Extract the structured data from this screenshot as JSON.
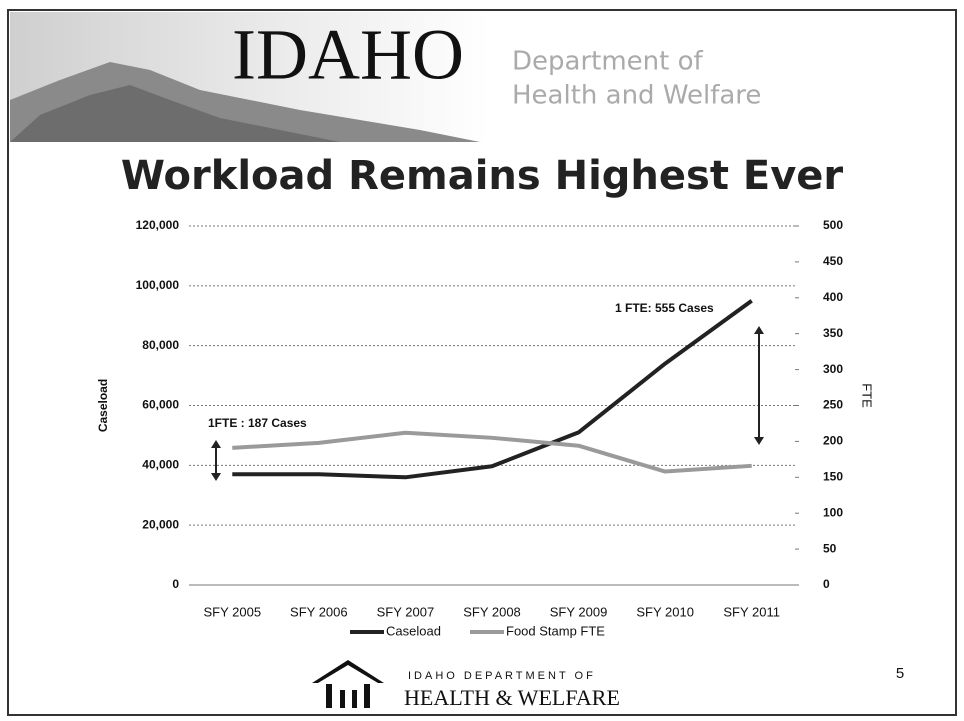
{
  "header": {
    "logo": "IDAHO",
    "department_line1": "Department of",
    "department_line2": "Health and Welfare"
  },
  "chart_data": {
    "type": "line",
    "title": "Workload Remains Highest Ever",
    "categories": [
      "SFY 2005",
      "SFY 2006",
      "SFY 2007",
      "SFY 2008",
      "SFY 2009",
      "SFY 2010",
      "SFY 2011"
    ],
    "series": [
      {
        "name": "Caseload",
        "color": "#222222",
        "values": [
          37000,
          37000,
          36000,
          39700,
          51000,
          74000,
          95000
        ]
      },
      {
        "name": "Food Stamp FTE",
        "color": "#9a9a9a",
        "axis": "y2",
        "values": [
          191,
          198,
          212,
          205,
          194,
          158,
          166
        ]
      }
    ],
    "ylabel": "Caseload",
    "y2label": "FTE",
    "ylim": [
      0,
      120000
    ],
    "yticks": [
      0,
      {
        "value": 20000,
        "label": "20,000"
      },
      {
        "value": 40000,
        "label": "40,000"
      },
      {
        "value": 60000,
        "label": "60,000"
      },
      {
        "value": 80000,
        "label": "80,000"
      },
      {
        "value": 100000,
        "label": "100,000"
      },
      {
        "value": 120000,
        "label": "120,000"
      }
    ],
    "y2lim": [
      0,
      500
    ],
    "y2ticks": [
      0,
      50,
      100,
      150,
      200,
      250,
      300,
      350,
      400,
      450,
      500
    ],
    "grid": true,
    "legend": "bottom",
    "annotations": [
      "1FTE : 187 Cases",
      "1 FTE: 555 Cases"
    ]
  },
  "footer": {
    "line1": "IDAHO DEPARTMENT OF",
    "line2": "HEALTH & WELFARE",
    "slide_number": "5"
  }
}
